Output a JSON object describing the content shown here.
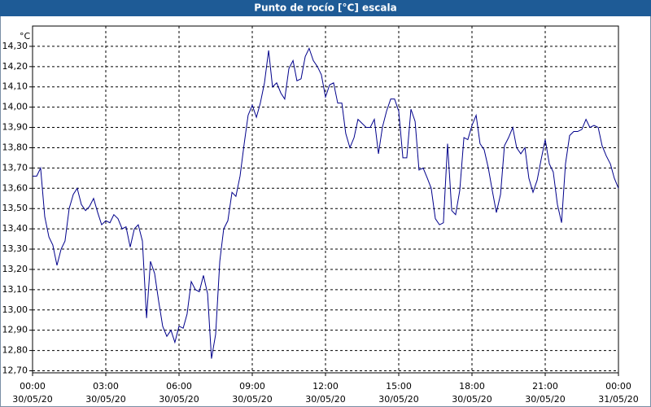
{
  "chart_data": {
    "type": "line",
    "title": "Punto de rocío [°C] escala",
    "y_unit": "°C",
    "color": "#00008b",
    "grid": true,
    "xlim": [
      0,
      24
    ],
    "ylim": [
      12.69,
      14.4
    ],
    "xticks": [
      {
        "value": 0,
        "label": "00:00",
        "date": "30/05/20"
      },
      {
        "value": 3,
        "label": "03:00",
        "date": "30/05/20"
      },
      {
        "value": 6,
        "label": "06:00",
        "date": "30/05/20"
      },
      {
        "value": 9,
        "label": "09:00",
        "date": "30/05/20"
      },
      {
        "value": 12,
        "label": "12:00",
        "date": "30/05/20"
      },
      {
        "value": 15,
        "label": "15:00",
        "date": "30/05/20"
      },
      {
        "value": 18,
        "label": "18:00",
        "date": "30/05/20"
      },
      {
        "value": 21,
        "label": "21:00",
        "date": "30/05/20"
      },
      {
        "value": 24,
        "label": "00:00",
        "date": "31/05/20"
      }
    ],
    "yticks": [
      {
        "value": 12.7,
        "label": "12,70"
      },
      {
        "value": 12.8,
        "label": "12,80"
      },
      {
        "value": 12.9,
        "label": "12,90"
      },
      {
        "value": 13.0,
        "label": "13,00"
      },
      {
        "value": 13.1,
        "label": "13,10"
      },
      {
        "value": 13.2,
        "label": "13,20"
      },
      {
        "value": 13.3,
        "label": "13,30"
      },
      {
        "value": 13.4,
        "label": "13,40"
      },
      {
        "value": 13.5,
        "label": "13,50"
      },
      {
        "value": 13.6,
        "label": "13,60"
      },
      {
        "value": 13.7,
        "label": "13,70"
      },
      {
        "value": 13.8,
        "label": "13,80"
      },
      {
        "value": 13.9,
        "label": "13,90"
      },
      {
        "value": 14.0,
        "label": "14,00"
      },
      {
        "value": 14.1,
        "label": "14,10"
      },
      {
        "value": 14.2,
        "label": "14,20"
      },
      {
        "value": 14.3,
        "label": "14,30"
      }
    ],
    "x": [
      0,
      0.17,
      0.33,
      0.5,
      0.67,
      0.83,
      1,
      1.17,
      1.33,
      1.5,
      1.67,
      1.83,
      2,
      2.17,
      2.33,
      2.5,
      2.67,
      2.83,
      3,
      3.17,
      3.33,
      3.5,
      3.67,
      3.83,
      4,
      4.17,
      4.33,
      4.5,
      4.67,
      4.83,
      5,
      5.17,
      5.33,
      5.5,
      5.67,
      5.83,
      6,
      6.17,
      6.33,
      6.5,
      6.67,
      6.83,
      7,
      7.17,
      7.33,
      7.5,
      7.67,
      7.83,
      8,
      8.17,
      8.33,
      8.5,
      8.67,
      8.83,
      9,
      9.17,
      9.33,
      9.5,
      9.67,
      9.83,
      10,
      10.17,
      10.33,
      10.5,
      10.67,
      10.83,
      11,
      11.17,
      11.33,
      11.5,
      11.67,
      11.83,
      12,
      12.17,
      12.33,
      12.5,
      12.67,
      12.83,
      13,
      13.17,
      13.33,
      13.5,
      13.67,
      13.83,
      14,
      14.17,
      14.33,
      14.5,
      14.67,
      14.83,
      15,
      15.17,
      15.33,
      15.5,
      15.67,
      15.83,
      16,
      16.17,
      16.33,
      16.5,
      16.67,
      16.83,
      17,
      17.17,
      17.33,
      17.5,
      17.67,
      17.83,
      18,
      18.17,
      18.33,
      18.5,
      18.67,
      18.83,
      19,
      19.17,
      19.33,
      19.5,
      19.67,
      19.83,
      20,
      20.17,
      20.33,
      20.5,
      20.67,
      20.83,
      21,
      21.17,
      21.33,
      21.5,
      21.67,
      21.83,
      22,
      22.17,
      22.33,
      22.5,
      22.67,
      22.83,
      23,
      23.17,
      23.33,
      23.5,
      23.67,
      23.83,
      24
    ],
    "values": [
      13.66,
      13.66,
      13.7,
      13.46,
      13.36,
      13.32,
      13.22,
      13.3,
      13.34,
      13.5,
      13.57,
      13.6,
      13.52,
      13.49,
      13.51,
      13.55,
      13.48,
      13.42,
      13.44,
      13.43,
      13.47,
      13.45,
      13.4,
      13.41,
      13.31,
      13.4,
      13.42,
      13.34,
      12.96,
      13.24,
      13.18,
      13.04,
      12.92,
      12.87,
      12.9,
      12.84,
      12.92,
      12.91,
      12.98,
      13.14,
      13.1,
      13.09,
      13.17,
      13.08,
      12.76,
      12.88,
      13.24,
      13.4,
      13.44,
      13.58,
      13.56,
      13.66,
      13.82,
      13.96,
      14.01,
      13.95,
      14.02,
      14.12,
      14.28,
      14.1,
      14.12,
      14.07,
      14.04,
      14.19,
      14.23,
      14.13,
      14.14,
      14.25,
      14.29,
      14.23,
      14.2,
      14.16,
      14.05,
      14.11,
      14.12,
      14.02,
      14.02,
      13.87,
      13.8,
      13.85,
      13.94,
      13.92,
      13.9,
      13.9,
      13.94,
      13.77,
      13.9,
      13.98,
      14.04,
      14.04,
      13.98,
      13.75,
      13.75,
      13.99,
      13.93,
      13.69,
      13.7,
      13.65,
      13.6,
      13.45,
      13.42,
      13.43,
      13.82,
      13.49,
      13.47,
      13.59,
      13.85,
      13.84,
      13.91,
      13.96,
      13.82,
      13.79,
      13.7,
      13.59,
      13.48,
      13.57,
      13.81,
      13.85,
      13.9,
      13.8,
      13.77,
      13.8,
      13.65,
      13.58,
      13.64,
      13.74,
      13.84,
      13.72,
      13.68,
      13.52,
      13.43,
      13.72,
      13.86,
      13.88,
      13.88,
      13.89,
      13.94,
      13.9,
      13.91,
      13.9,
      13.81,
      13.76,
      13.72,
      13.65,
      13.6
    ]
  }
}
